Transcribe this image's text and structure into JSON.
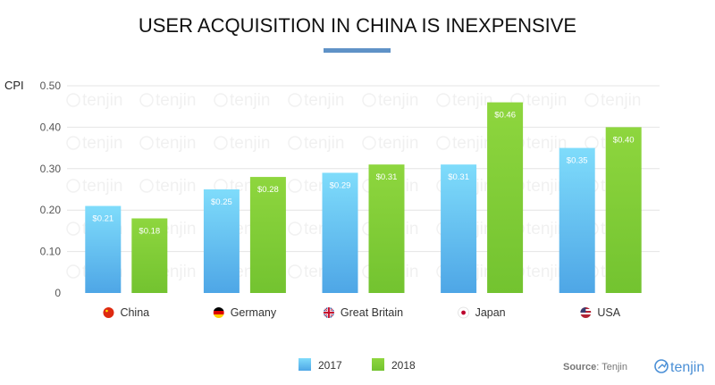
{
  "chart_data": {
    "type": "bar",
    "title": "USER ACQUISITION IN CHINA IS INEXPENSIVE",
    "ylabel": "CPI",
    "xlabel": "",
    "ylim": [
      0,
      0.5
    ],
    "yticks": [
      "0",
      "0.10",
      "0.20",
      "0.30",
      "0.40",
      "0.50"
    ],
    "grid": true,
    "legend_position": "bottom-center",
    "categories": [
      "China",
      "Germany",
      "Great Britain",
      "Japan",
      "USA"
    ],
    "series": [
      {
        "name": "2017",
        "color": "#5ab4ee",
        "values": [
          0.21,
          0.25,
          0.29,
          0.31,
          0.35
        ],
        "labels": [
          "$0.21",
          "$0.25",
          "$0.29",
          "$0.31",
          "$0.35"
        ]
      },
      {
        "name": "2018",
        "color": "#84cc3a",
        "values": [
          0.18,
          0.28,
          0.31,
          0.46,
          0.4
        ],
        "labels": [
          "$0.18",
          "$0.28",
          "$0.31",
          "$0.46",
          "$0.40"
        ]
      }
    ],
    "source_key": "Source",
    "source_value": ": Tenjin",
    "watermark_text": "tenjin",
    "brand": "tenjin",
    "flag_icons": [
      "china-flag-icon",
      "germany-flag-icon",
      "great-britain-flag-icon",
      "japan-flag-icon",
      "usa-flag-icon"
    ]
  }
}
